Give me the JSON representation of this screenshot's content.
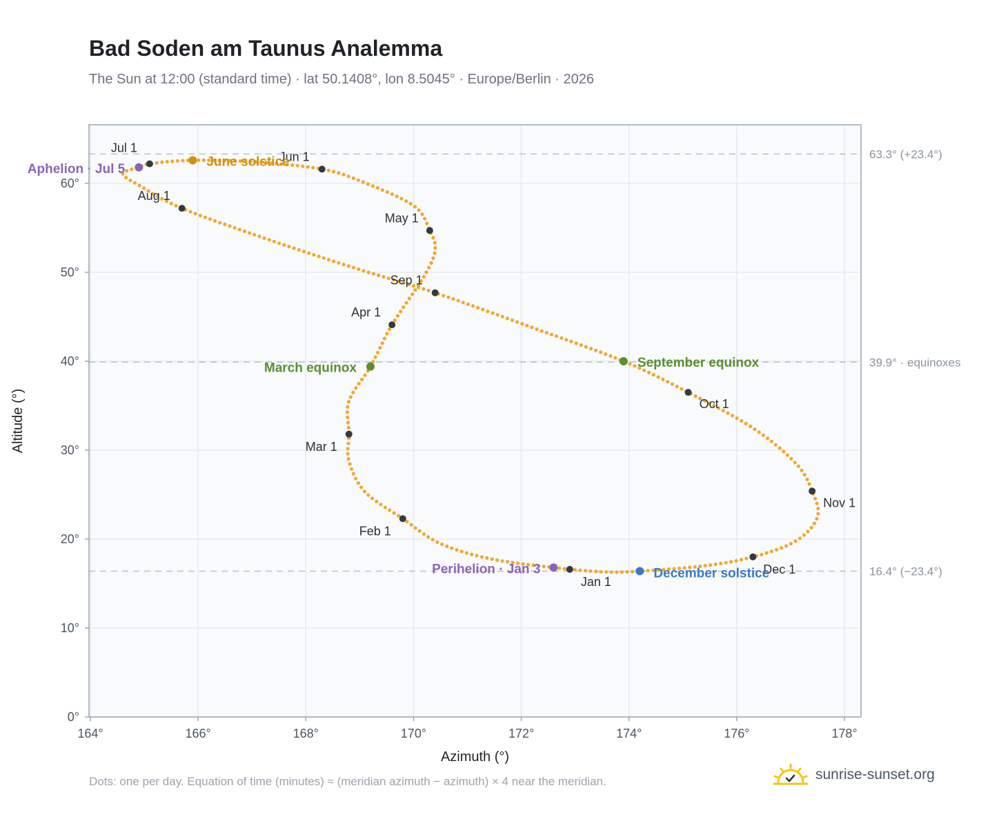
{
  "header": {
    "title": "Bad Soden am Taunus Analemma",
    "subtitle": "The Sun at 12:00 (standard time) · lat 50.1408°, lon 8.5045° · Europe/Berlin · 2026"
  },
  "footer": {
    "note": "Dots: one per day. Equation of time (minutes) ≈ (meridian azimuth − azimuth) × 4 near the meridian.",
    "brand": "sunrise-sunset.org"
  },
  "colors": {
    "path": "#f0a830",
    "month_marker": "#343a40",
    "solstice_june": "#d48f0a",
    "equinox": "#5a8f2e",
    "solstice_december": "#3a7ac2",
    "apsis": "#8e63b5",
    "grid": "#e5e9ee",
    "reference_line": "#b8c2cc",
    "plot_bg": "#f8fafc",
    "frame": "#9aa5b1",
    "logo": "#f5c518"
  },
  "chart_data": {
    "type": "scatter",
    "title": "Bad Soden am Taunus Analemma",
    "xlabel": "Azimuth (°)",
    "ylabel": "Altitude (°)",
    "xlim": [
      163.9,
      178.3
    ],
    "ylim": [
      0,
      66.5
    ],
    "x_ticks": [
      164,
      166,
      168,
      170,
      172,
      174,
      176,
      178
    ],
    "x_tick_labels": [
      "164°",
      "166°",
      "168°",
      "170°",
      "172°",
      "174°",
      "176°",
      "178°"
    ],
    "y_ticks": [
      0,
      10,
      20,
      30,
      40,
      50,
      60
    ],
    "y_tick_labels": [
      "0°",
      "10°",
      "20°",
      "30°",
      "40°",
      "50°",
      "60°"
    ],
    "grid": true,
    "reference_lines": [
      {
        "y": 63.3,
        "label": "63.3° (+23.4°)"
      },
      {
        "y": 39.9,
        "label": "39.9° · equinoxes"
      },
      {
        "y": 16.4,
        "label": "16.4° (−23.4°)"
      }
    ],
    "month_markers": [
      {
        "label": "Jan 1",
        "az": 172.9,
        "alt": 16.6
      },
      {
        "label": "Feb 1",
        "az": 169.8,
        "alt": 22.3
      },
      {
        "label": "Mar 1",
        "az": 168.8,
        "alt": 31.8
      },
      {
        "label": "Apr 1",
        "az": 169.6,
        "alt": 44.1
      },
      {
        "label": "May 1",
        "az": 170.3,
        "alt": 54.7
      },
      {
        "label": "Jun 1",
        "az": 168.3,
        "alt": 61.6
      },
      {
        "label": "Jul 1",
        "az": 165.1,
        "alt": 62.2
      },
      {
        "label": "Aug 1",
        "az": 165.7,
        "alt": 57.2
      },
      {
        "label": "Sep 1",
        "az": 170.4,
        "alt": 47.7
      },
      {
        "label": "Oct 1",
        "az": 175.1,
        "alt": 36.5
      },
      {
        "label": "Nov 1",
        "az": 177.4,
        "alt": 25.4
      },
      {
        "label": "Dec 1",
        "az": 176.3,
        "alt": 18.0
      }
    ],
    "events": [
      {
        "label": "June solstice",
        "az": 165.9,
        "alt": 62.6,
        "kind": "solstice_june"
      },
      {
        "label": "March equinox",
        "az": 169.2,
        "alt": 39.4,
        "kind": "equinox"
      },
      {
        "label": "September equinox",
        "az": 173.9,
        "alt": 40.0,
        "kind": "equinox"
      },
      {
        "label": "December solstice",
        "az": 174.2,
        "alt": 16.4,
        "kind": "solstice_december"
      },
      {
        "label": "Aphelion · Jul 5",
        "az": 164.9,
        "alt": 61.8,
        "kind": "apsis"
      },
      {
        "label": "Perihelion · Jan 3",
        "az": 172.6,
        "alt": 16.8,
        "kind": "apsis"
      }
    ],
    "path_control_points": [
      {
        "az": 172.9,
        "alt": 16.6
      },
      {
        "az": 171.5,
        "alt": 17.7
      },
      {
        "az": 170.5,
        "alt": 19.5
      },
      {
        "az": 169.8,
        "alt": 22.3
      },
      {
        "az": 169.1,
        "alt": 25.3
      },
      {
        "az": 168.8,
        "alt": 28.8
      },
      {
        "az": 168.8,
        "alt": 31.8
      },
      {
        "az": 168.8,
        "alt": 35.5
      },
      {
        "az": 169.2,
        "alt": 39.4
      },
      {
        "az": 169.6,
        "alt": 44.1
      },
      {
        "az": 170.2,
        "alt": 49.6
      },
      {
        "az": 170.4,
        "alt": 52.5
      },
      {
        "az": 170.3,
        "alt": 54.7
      },
      {
        "az": 170.0,
        "alt": 57.5
      },
      {
        "az": 169.0,
        "alt": 60.3
      },
      {
        "az": 168.3,
        "alt": 61.6
      },
      {
        "az": 167.1,
        "alt": 62.4
      },
      {
        "az": 165.9,
        "alt": 62.6
      },
      {
        "az": 165.1,
        "alt": 62.2
      },
      {
        "az": 164.9,
        "alt": 61.8
      },
      {
        "az": 164.6,
        "alt": 61.1
      },
      {
        "az": 164.9,
        "alt": 59.8
      },
      {
        "az": 165.7,
        "alt": 57.2
      },
      {
        "az": 167.3,
        "alt": 53.7
      },
      {
        "az": 168.9,
        "alt": 50.5
      },
      {
        "az": 170.4,
        "alt": 47.7
      },
      {
        "az": 172.2,
        "alt": 43.8
      },
      {
        "az": 173.9,
        "alt": 40.0
      },
      {
        "az": 175.1,
        "alt": 36.5
      },
      {
        "az": 176.3,
        "alt": 32.5
      },
      {
        "az": 177.1,
        "alt": 28.5
      },
      {
        "az": 177.4,
        "alt": 25.4
      },
      {
        "az": 177.5,
        "alt": 22.5
      },
      {
        "az": 177.1,
        "alt": 19.8
      },
      {
        "az": 176.3,
        "alt": 18.0
      },
      {
        "az": 175.4,
        "alt": 17.0
      },
      {
        "az": 174.2,
        "alt": 16.4
      },
      {
        "az": 173.6,
        "alt": 16.3
      },
      {
        "az": 172.9,
        "alt": 16.6
      }
    ]
  }
}
